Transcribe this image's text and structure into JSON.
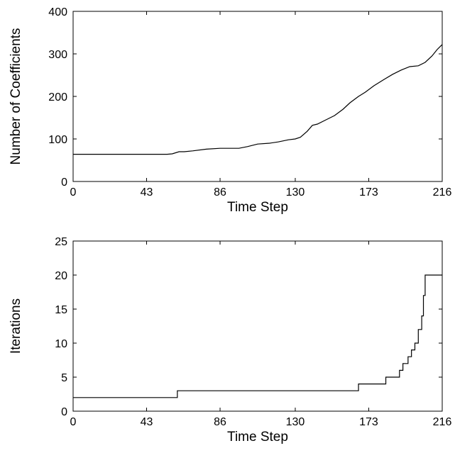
{
  "chart_data": [
    {
      "type": "line",
      "ylabel": "Number of Coefficients",
      "xlabel": "Time Step",
      "x": [
        0,
        55,
        58,
        62,
        65,
        70,
        78,
        86,
        97,
        102,
        108,
        115,
        120,
        126,
        130,
        133,
        137,
        140,
        143,
        148,
        153,
        158,
        162,
        167,
        171,
        176,
        182,
        187,
        192,
        197,
        202,
        206,
        210,
        213,
        216
      ],
      "series": [
        {
          "color": "#000000",
          "values": [
            64,
            64,
            65,
            70,
            70,
            72,
            76,
            78,
            78,
            82,
            88,
            90,
            93,
            98,
            100,
            104,
            118,
            132,
            135,
            145,
            155,
            170,
            185,
            200,
            210,
            225,
            240,
            252,
            262,
            270,
            272,
            280,
            295,
            310,
            322
          ]
        }
      ],
      "xlim": [
        0,
        216
      ],
      "xticks": [
        0,
        43,
        86,
        130,
        173,
        216
      ],
      "ylim": [
        0,
        400
      ],
      "yticks": [
        0,
        100,
        200,
        300,
        400
      ]
    },
    {
      "type": "line",
      "ylabel": "Iterations",
      "xlabel": "Time Step",
      "x": [
        0,
        61,
        61,
        167,
        167,
        183,
        183,
        191,
        191,
        193,
        193,
        196,
        196,
        198,
        198,
        200,
        200,
        202,
        202,
        204,
        204,
        205,
        205,
        206,
        206,
        207,
        216
      ],
      "series": [
        {
          "color": "#000000",
          "values": [
            2,
            2,
            3,
            3,
            4,
            4,
            5,
            5,
            6,
            6,
            7,
            7,
            8,
            8,
            9,
            9,
            10,
            10,
            12,
            12,
            14,
            14,
            17,
            17,
            20,
            20,
            20
          ]
        }
      ],
      "xlim": [
        0,
        216
      ],
      "xticks": [
        0,
        43,
        86,
        130,
        173,
        216
      ],
      "ylim": [
        0,
        25
      ],
      "yticks": [
        0,
        5,
        10,
        15,
        20,
        25
      ]
    }
  ]
}
